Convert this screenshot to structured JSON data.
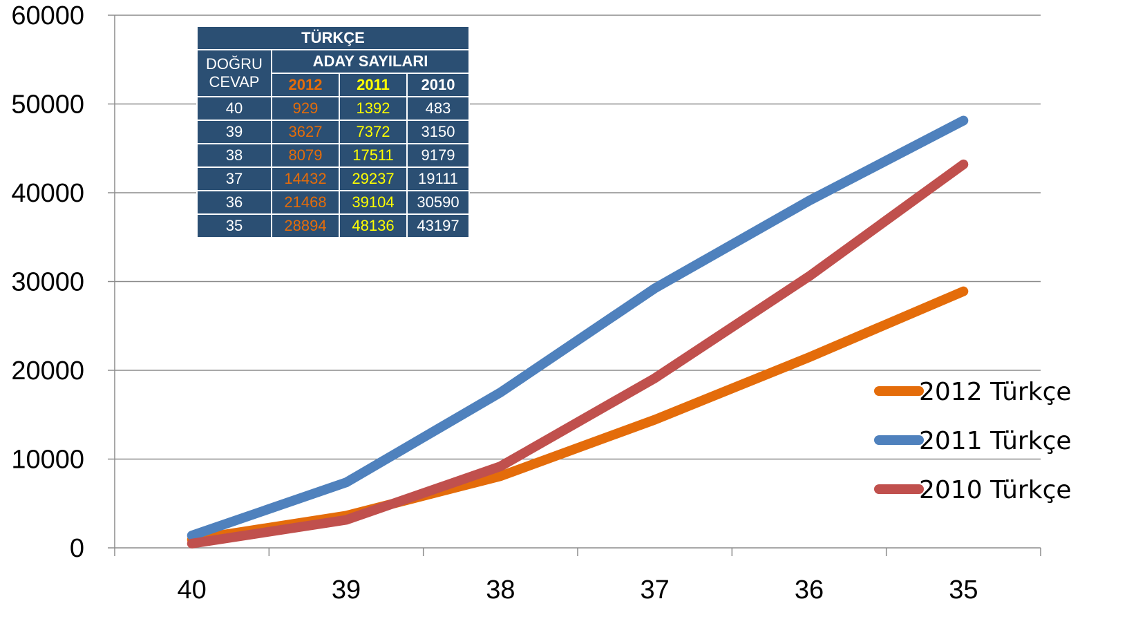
{
  "chart_data": {
    "type": "line",
    "categories": [
      "40",
      "39",
      "38",
      "37",
      "36",
      "35"
    ],
    "series": [
      {
        "name": "2012 Türkçe",
        "color": "#e46c0a",
        "values": [
          929,
          3627,
          8079,
          14432,
          21468,
          28894
        ]
      },
      {
        "name": "2011 Türkçe",
        "color": "#4f81bd",
        "values": [
          1392,
          7372,
          17511,
          29237,
          39104,
          48136
        ]
      },
      {
        "name": "2010 Türkçe",
        "color": "#c0504d",
        "values": [
          483,
          3150,
          9179,
          19111,
          30590,
          43197
        ]
      }
    ],
    "ylim": [
      0,
      60000
    ],
    "yticks": [
      "0",
      "10000",
      "20000",
      "30000",
      "40000",
      "50000",
      "60000"
    ],
    "grid": true,
    "legend": "right",
    "table": {
      "title": "TÜRKÇE",
      "row_header": "DOĞRU CEVAP",
      "group_header": "ADAY SAYILARI",
      "years": [
        "2012",
        "2011",
        "2010"
      ],
      "rows": [
        [
          "40",
          "929",
          "1392",
          "483"
        ],
        [
          "39",
          "3627",
          "7372",
          "3150"
        ],
        [
          "38",
          "8079",
          "17511",
          "9179"
        ],
        [
          "37",
          "14432",
          "29237",
          "19111"
        ],
        [
          "36",
          "21468",
          "39104",
          "30590"
        ],
        [
          "35",
          "28894",
          "48136",
          "43197"
        ]
      ]
    }
  }
}
